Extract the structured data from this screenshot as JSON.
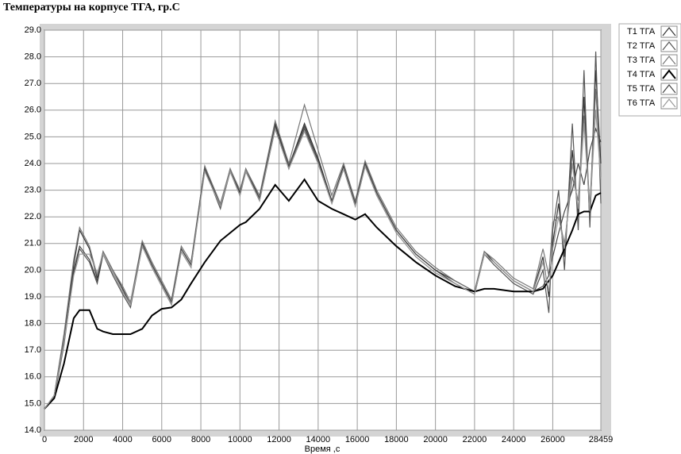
{
  "chart_data": {
    "type": "line",
    "title": "Температуры  на корпусе ТГА, гр.С",
    "x_label": "Время ,с",
    "xlim": [
      0,
      28459
    ],
    "xticks": [
      0,
      2000,
      4000,
      6000,
      8000,
      10000,
      12000,
      14000,
      16000,
      18000,
      20000,
      22000,
      24000,
      26000,
      28459
    ],
    "ylim": [
      14,
      29
    ],
    "yticks": [
      {
        "value": 14,
        "label": "14.0"
      },
      {
        "value": 15,
        "label": "15.0"
      },
      {
        "value": 16,
        "label": "16.0"
      },
      {
        "value": 17,
        "label": "17.0"
      },
      {
        "value": 18,
        "label": "18.0"
      },
      {
        "value": 19,
        "label": "19.0"
      },
      {
        "value": 20,
        "label": "20.0"
      },
      {
        "value": 21,
        "label": "21.0"
      },
      {
        "value": 22,
        "label": "22.0"
      },
      {
        "value": 23,
        "label": "23.0"
      },
      {
        "value": 24,
        "label": "24.0"
      },
      {
        "value": 25,
        "label": "25.0"
      },
      {
        "value": 26,
        "label": "26.0"
      },
      {
        "value": 27,
        "label": "27.0"
      },
      {
        "value": 28,
        "label": "28.0"
      },
      {
        "value": 29,
        "label": "29.0"
      }
    ],
    "grid": true,
    "x": [
      0,
      500,
      1000,
      1500,
      1800,
      2300,
      2700,
      3000,
      3500,
      4000,
      4400,
      5000,
      5500,
      6000,
      6500,
      7000,
      7500,
      8200,
      9000,
      9500,
      10000,
      10300,
      11000,
      11800,
      12500,
      13300,
      14000,
      14700,
      15300,
      15900,
      16400,
      17000,
      18000,
      19000,
      20000,
      21000,
      22000,
      22500,
      23000,
      24000,
      25000,
      25500,
      25800,
      26000,
      26300,
      26600,
      27000,
      27300,
      27600,
      27900,
      28200,
      28459
    ],
    "series": [
      {
        "name": "T1 ТГА",
        "color": "#333333",
        "values": [
          14.8,
          15.3,
          17.5,
          20.2,
          21.5,
          20.8,
          19.7,
          20.7,
          20.0,
          19.3,
          18.7,
          21.0,
          20.2,
          19.5,
          18.8,
          20.8,
          20.2,
          23.9,
          22.4,
          23.8,
          22.9,
          23.8,
          22.7,
          25.5,
          23.9,
          25.5,
          24.2,
          22.6,
          23.9,
          22.5,
          24.0,
          22.9,
          21.5,
          20.6,
          20.0,
          19.6,
          19.2,
          20.7,
          20.3,
          19.6,
          19.2,
          20.5,
          19.0,
          21.0,
          22.5,
          20.5,
          24.5,
          22.0,
          26.5,
          21.8,
          27.5,
          24.0
        ]
      },
      {
        "name": "T2 ТГА",
        "color": "#555555",
        "values": [
          14.8,
          15.2,
          17.2,
          19.9,
          20.8,
          20.3,
          19.5,
          20.6,
          19.8,
          19.1,
          18.6,
          20.9,
          20.1,
          19.4,
          18.7,
          20.7,
          20.1,
          23.8,
          22.3,
          23.7,
          22.8,
          23.7,
          22.6,
          25.3,
          23.8,
          25.3,
          24.0,
          22.5,
          23.8,
          22.4,
          23.9,
          22.8,
          21.4,
          20.5,
          19.9,
          19.5,
          19.1,
          20.6,
          20.2,
          19.5,
          19.1,
          20.0,
          18.4,
          21.5,
          23.0,
          20.0,
          25.5,
          21.5,
          27.5,
          21.6,
          28.2,
          22.5
        ]
      },
      {
        "name": "T3 ТГА",
        "color": "#777777",
        "values": [
          14.8,
          15.3,
          17.6,
          20.4,
          21.6,
          20.9,
          19.8,
          20.7,
          20.0,
          19.4,
          18.8,
          21.1,
          20.3,
          19.6,
          18.9,
          20.9,
          20.3,
          23.9,
          22.5,
          23.8,
          23.0,
          23.8,
          22.8,
          25.6,
          24.0,
          26.2,
          24.5,
          22.8,
          24.0,
          22.6,
          24.1,
          23.0,
          21.6,
          20.7,
          20.1,
          19.6,
          19.2,
          20.7,
          20.4,
          19.7,
          19.3,
          20.8,
          19.8,
          21.8,
          22.0,
          21.0,
          23.5,
          22.6,
          25.8,
          22.4,
          26.8,
          23.5
        ]
      },
      {
        "name": "T4 ТГА",
        "color": "#000000",
        "values": [
          14.8,
          15.2,
          16.5,
          18.2,
          18.5,
          18.5,
          17.8,
          17.7,
          17.6,
          17.6,
          17.6,
          17.8,
          18.3,
          18.55,
          18.6,
          18.9,
          19.5,
          20.3,
          21.1,
          21.4,
          21.7,
          21.8,
          22.3,
          23.2,
          22.6,
          23.4,
          22.6,
          22.3,
          22.1,
          21.9,
          22.1,
          21.6,
          20.9,
          20.3,
          19.8,
          19.4,
          19.2,
          19.3,
          19.3,
          19.2,
          19.2,
          19.3,
          19.6,
          19.8,
          20.3,
          20.8,
          21.5,
          22.1,
          22.2,
          22.2,
          22.8,
          22.9
        ]
      },
      {
        "name": "T5 ТГА",
        "color": "#444444",
        "values": [
          14.8,
          15.3,
          17.4,
          20.0,
          20.9,
          20.4,
          19.6,
          20.6,
          19.9,
          19.2,
          18.7,
          21.0,
          20.2,
          19.5,
          18.8,
          20.8,
          20.2,
          23.8,
          22.4,
          23.7,
          22.9,
          23.7,
          22.7,
          25.4,
          23.9,
          25.4,
          24.1,
          22.6,
          23.8,
          22.5,
          24.0,
          22.9,
          21.5,
          20.6,
          20.0,
          19.5,
          19.1,
          20.6,
          20.3,
          19.6,
          19.2,
          19.4,
          19.8,
          20.5,
          21.4,
          22.2,
          23.0,
          24.0,
          23.2,
          24.5,
          25.3,
          24.8
        ]
      },
      {
        "name": "T6 ТГА",
        "color": "#999999",
        "values": [
          14.8,
          15.3,
          17.3,
          19.8,
          20.6,
          20.6,
          19.9,
          20.6,
          19.9,
          19.2,
          18.7,
          20.9,
          20.1,
          19.4,
          18.7,
          20.7,
          20.1,
          23.7,
          22.4,
          23.7,
          22.8,
          23.7,
          22.6,
          25.3,
          23.8,
          25.2,
          24.0,
          22.5,
          23.8,
          22.4,
          23.9,
          22.8,
          21.4,
          20.5,
          19.9,
          19.5,
          19.1,
          20.6,
          20.3,
          19.6,
          19.2,
          20.3,
          19.2,
          20.8,
          22.0,
          20.8,
          24.0,
          22.3,
          25.5,
          22.2,
          26.0,
          23.4
        ]
      }
    ],
    "legend": "right"
  }
}
